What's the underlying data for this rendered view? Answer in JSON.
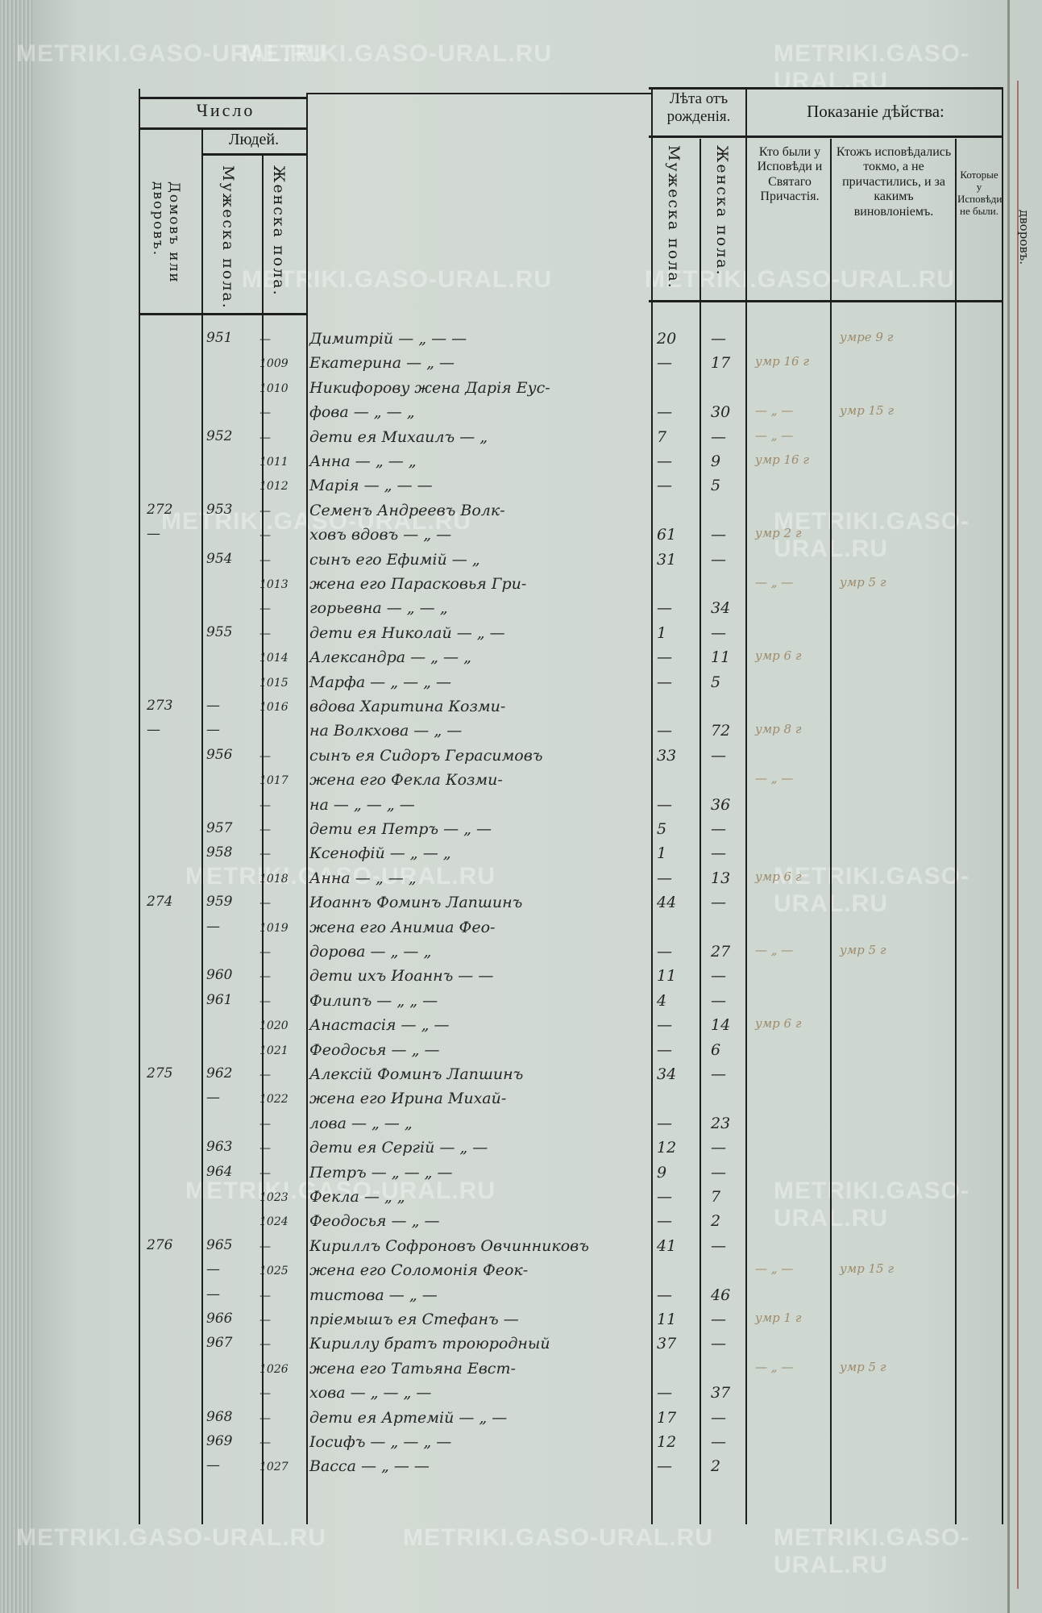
{
  "header": {
    "chislo": "Число",
    "lyudey": "Людей.",
    "domov": "Домовъ или дворовъ.",
    "muzh": "Мужеска пола.",
    "zhen": "Женска пола.",
    "leta": "Лѣта отъ рожденія.",
    "leta_muzh": "Мужеска пола.",
    "leta_zhen": "Женска пола.",
    "pokazanie": "Показаніе дѣйства:",
    "kto": "Кто были у Исповѣди и Святаго Причастія.",
    "ktozh": "Ктожъ исповѣдались токмо, а не причастились, и за какимъ виновлоніемъ.",
    "kotorye": "Которые у Исповѣди не были."
  },
  "next_page_label": "дворовъ.",
  "watermark": "METRIKI.GASO-URAL.RU",
  "rows": [
    {
      "house": "",
      "male": "951",
      "fem": "—",
      "name": "Димитрій — „ — —",
      "mage": "20",
      "fage": "—",
      "note": "",
      "note2": "умре 9 г"
    },
    {
      "house": "",
      "male": "",
      "fem": "1009",
      "name": "Екатерина — „ —",
      "mage": "—",
      "fage": "17",
      "note": "умр 16 г",
      "note2": ""
    },
    {
      "house": "",
      "male": "",
      "fem": "1010",
      "name": "Никифорову жена Дарія Еус-",
      "mage": "",
      "fage": "",
      "note": "",
      "note2": ""
    },
    {
      "house": "",
      "male": "",
      "fem": "—",
      "name": "фова — „ — „",
      "mage": "—",
      "fage": "30",
      "note": "— „ —",
      "note2": "умр 15 г"
    },
    {
      "house": "",
      "male": "952",
      "fem": "—",
      "name": "дети ея Михаилъ — „",
      "mage": "7",
      "fage": "—",
      "note": "— „ —",
      "note2": ""
    },
    {
      "house": "",
      "male": "",
      "fem": "1011",
      "name": "Анна — „ — „",
      "mage": "—",
      "fage": "9",
      "note": "умр 16 г",
      "note2": ""
    },
    {
      "house": "",
      "male": "",
      "fem": "1012",
      "name": "Марія — „ — —",
      "mage": "—",
      "fage": "5",
      "note": "",
      "note2": ""
    },
    {
      "house": "272",
      "male": "953",
      "fem": "—",
      "name": "Семенъ Андреевъ Волк-",
      "mage": "",
      "fage": "",
      "note": "",
      "note2": ""
    },
    {
      "house": "—",
      "male": "",
      "fem": "—",
      "name": "ховъ вдовъ — „ —",
      "mage": "61",
      "fage": "—",
      "note": "умр 2 г",
      "note2": ""
    },
    {
      "house": "",
      "male": "954",
      "fem": "—",
      "name": "сынъ его Ефимій — „",
      "mage": "31",
      "fage": "—",
      "note": "",
      "note2": ""
    },
    {
      "house": "",
      "male": "",
      "fem": "1013",
      "name": "жена его Парасковья Гри-",
      "mage": "",
      "fage": "",
      "note": "— „ —",
      "note2": "умр 5 г"
    },
    {
      "house": "",
      "male": "",
      "fem": "—",
      "name": "горьевна — „ — „",
      "mage": "—",
      "fage": "34",
      "note": "",
      "note2": ""
    },
    {
      "house": "",
      "male": "955",
      "fem": "—",
      "name": "дети ея Николай — „ —",
      "mage": "1",
      "fage": "—",
      "note": "",
      "note2": ""
    },
    {
      "house": "",
      "male": "",
      "fem": "1014",
      "name": "Александра — „ — „",
      "mage": "—",
      "fage": "11",
      "note": "умр 6 г",
      "note2": ""
    },
    {
      "house": "",
      "male": "",
      "fem": "1015",
      "name": "Марфа — „ — „ —",
      "mage": "—",
      "fage": "5",
      "note": "",
      "note2": ""
    },
    {
      "house": "273",
      "male": "—",
      "fem": "1016",
      "name": "вдова Харитина Козми-",
      "mage": "",
      "fage": "",
      "note": "",
      "note2": ""
    },
    {
      "house": "—",
      "male": "—",
      "fem": "",
      "name": "на Волкхова — „ —",
      "mage": "—",
      "fage": "72",
      "note": "умр 8 г",
      "note2": ""
    },
    {
      "house": "",
      "male": "956",
      "fem": "—",
      "name": "сынъ ея Сидоръ Герасимовъ",
      "mage": "33",
      "fage": "—",
      "note": "",
      "note2": ""
    },
    {
      "house": "",
      "male": "",
      "fem": "1017",
      "name": "жена его Фекла Козми-",
      "mage": "",
      "fage": "",
      "note": "— „ —",
      "note2": ""
    },
    {
      "house": "",
      "male": "",
      "fem": "—",
      "name": "на — „ — „ —",
      "mage": "—",
      "fage": "36",
      "note": "",
      "note2": ""
    },
    {
      "house": "",
      "male": "957",
      "fem": "—",
      "name": "дети ея Петръ — „ —",
      "mage": "5",
      "fage": "—",
      "note": "",
      "note2": ""
    },
    {
      "house": "",
      "male": "958",
      "fem": "—",
      "name": "Ксенофій — „ — „",
      "mage": "1",
      "fage": "—",
      "note": "",
      "note2": ""
    },
    {
      "house": "",
      "male": "",
      "fem": "1018",
      "name": "Анна — „ — „",
      "mage": "—",
      "fage": "13",
      "note": "умр 6 г",
      "note2": ""
    },
    {
      "house": "274",
      "male": "959",
      "fem": "—",
      "name": "Иоаннъ Фоминъ Лапшинъ",
      "mage": "44",
      "fage": "—",
      "note": "",
      "note2": ""
    },
    {
      "house": "",
      "male": "—",
      "fem": "1019",
      "name": "жена его Анимиа Фео-",
      "mage": "",
      "fage": "",
      "note": "",
      "note2": ""
    },
    {
      "house": "",
      "male": "",
      "fem": "—",
      "name": "дорова — „ — „",
      "mage": "—",
      "fage": "27",
      "note": "— „ —",
      "note2": "умр 5 г"
    },
    {
      "house": "",
      "male": "960",
      "fem": "—",
      "name": "дети ихъ Иоаннъ — —",
      "mage": "11",
      "fage": "—",
      "note": "",
      "note2": ""
    },
    {
      "house": "",
      "male": "961",
      "fem": "—",
      "name": "Филипъ — „ „ —",
      "mage": "4",
      "fage": "—",
      "note": "",
      "note2": ""
    },
    {
      "house": "",
      "male": "",
      "fem": "1020",
      "name": "Анастасія — „ —",
      "mage": "—",
      "fage": "14",
      "note": "умр 6 г",
      "note2": ""
    },
    {
      "house": "",
      "male": "",
      "fem": "1021",
      "name": "Феодосья — „ —",
      "mage": "—",
      "fage": "6",
      "note": "",
      "note2": ""
    },
    {
      "house": "275",
      "male": "962",
      "fem": "—",
      "name": "Алексій Фоминъ Лапшинъ",
      "mage": "34",
      "fage": "—",
      "note": "",
      "note2": ""
    },
    {
      "house": "",
      "male": "—",
      "fem": "1022",
      "name": "жена его Ирина Михай-",
      "mage": "",
      "fage": "",
      "note": "",
      "note2": ""
    },
    {
      "house": "",
      "male": "",
      "fem": "—",
      "name": "лова — „ — „",
      "mage": "—",
      "fage": "23",
      "note": "",
      "note2": ""
    },
    {
      "house": "",
      "male": "963",
      "fem": "—",
      "name": "дети ея Сергій — „ —",
      "mage": "12",
      "fage": "—",
      "note": "",
      "note2": ""
    },
    {
      "house": "",
      "male": "964",
      "fem": "—",
      "name": "Петръ — „ — „ —",
      "mage": "9",
      "fage": "—",
      "note": "",
      "note2": ""
    },
    {
      "house": "",
      "male": "",
      "fem": "1023",
      "name": "Фекла — „ „",
      "mage": "—",
      "fage": "7",
      "note": "",
      "note2": ""
    },
    {
      "house": "",
      "male": "",
      "fem": "1024",
      "name": "Феодосья — „ —",
      "mage": "—",
      "fage": "2",
      "note": "",
      "note2": ""
    },
    {
      "house": "276",
      "male": "965",
      "fem": "—",
      "name": "Кириллъ Софроновъ Овчинниковъ",
      "mage": "41",
      "fage": "—",
      "note": "",
      "note2": ""
    },
    {
      "house": "",
      "male": "—",
      "fem": "1025",
      "name": "жена его Соломонія Феок-",
      "mage": "",
      "fage": "",
      "note": "— „ —",
      "note2": "умр 15 г"
    },
    {
      "house": "",
      "male": "—",
      "fem": "—",
      "name": "тистова — „ —",
      "mage": "—",
      "fage": "46",
      "note": "",
      "note2": ""
    },
    {
      "house": "",
      "male": "966",
      "fem": "—",
      "name": "пріемышъ ея Стефанъ —",
      "mage": "11",
      "fage": "—",
      "note": "умр 1 г",
      "note2": ""
    },
    {
      "house": "",
      "male": "967",
      "fem": "—",
      "name": "Кириллу братъ троюродный",
      "mage": "37",
      "fage": "—",
      "note": "",
      "note2": ""
    },
    {
      "house": "",
      "male": "",
      "fem": "1026",
      "name": "жена его Татьяна Евст-",
      "mage": "",
      "fage": "",
      "note": "— „ —",
      "note2": "умр 5 г"
    },
    {
      "house": "",
      "male": "",
      "fem": "—",
      "name": "хова — „ — „ —",
      "mage": "—",
      "fage": "37",
      "note": "",
      "note2": ""
    },
    {
      "house": "",
      "male": "968",
      "fem": "—",
      "name": "дети ея Артемій — „ —",
      "mage": "17",
      "fage": "—",
      "note": "",
      "note2": ""
    },
    {
      "house": "",
      "male": "969",
      "fem": "—",
      "name": "Іосифъ — „ — „ —",
      "mage": "12",
      "fage": "—",
      "note": "",
      "note2": ""
    },
    {
      "house": "",
      "male": "—",
      "fem": "1027",
      "name": "Васса — „ — —",
      "mage": "—",
      "fage": "2",
      "note": "",
      "note2": ""
    }
  ]
}
